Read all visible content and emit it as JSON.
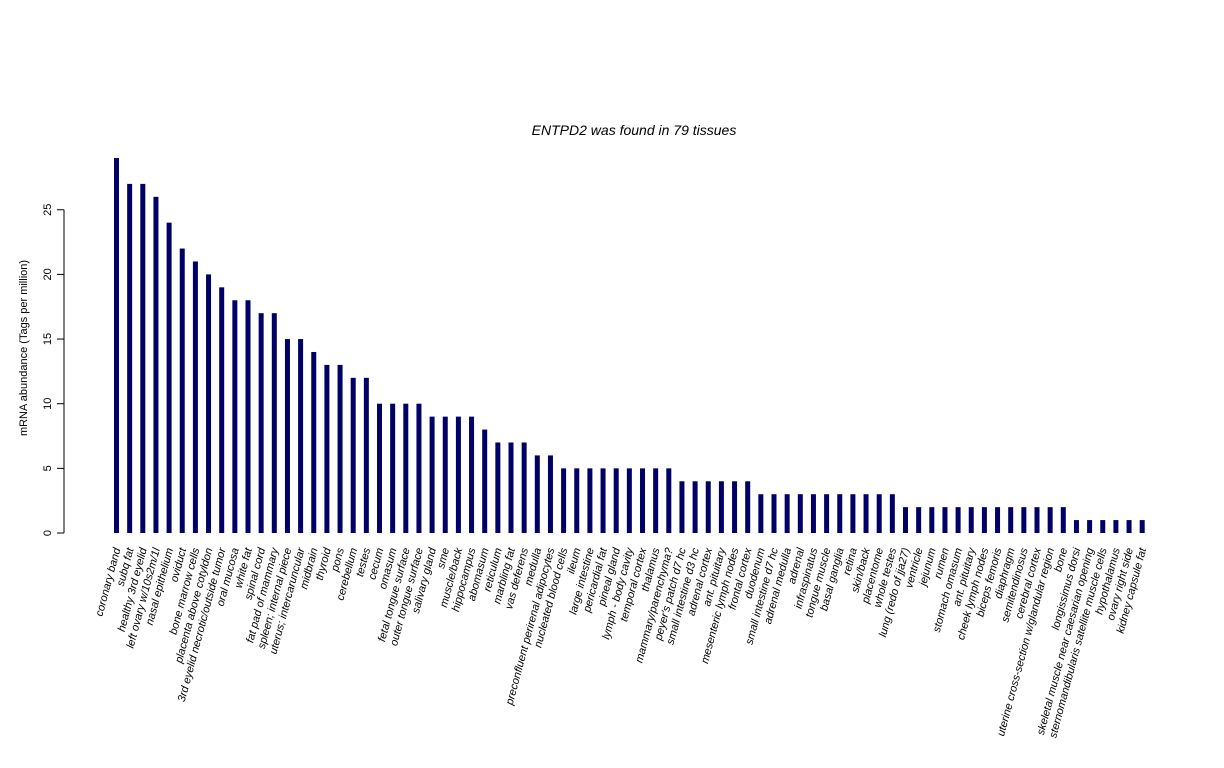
{
  "chart_data": {
    "type": "bar",
    "title": "ENTPD2  was found in  79  tissues",
    "xlabel": "",
    "ylabel": "mRNA abundance (Tags per million)",
    "ylim": [
      0,
      29
    ],
    "yticks": [
      0,
      5,
      10,
      15,
      20,
      25
    ],
    "grid": false,
    "bar_color": "#000066",
    "categories": [
      "coronary band",
      "subq fat",
      "healthy 3rd eyelid",
      "left ovary w/10s2m/1l",
      "nasal epithelium",
      "oviduct",
      "bone marrow cells",
      "placenta above cotyldon",
      "3rd eyelid necrotic/outside tumor",
      "oral mucosa",
      "white fat",
      "spinal cord",
      "fat pad of mammary",
      "spleen; internal piece",
      "uterus; intercaruncular",
      "midbrain",
      "thyroid",
      "pons",
      "cerebellum",
      "testes",
      "cecum",
      "omasum",
      "fetal tongue surface",
      "outer tongue surface",
      "salivary gland",
      "sme",
      "muscle/back",
      "hippocampus",
      "abomasum",
      "reticulum",
      "marbling fat",
      "vas deferens",
      "medulla",
      "preconfluent perirenal adipocytes",
      "nucleated blood cells",
      "ileum",
      "large intestine",
      "pericardial fat",
      "pineal gland",
      "lymph - body cavity",
      "temporal cortex",
      "thalamus",
      "mammary/parenchyma?",
      "peyer's patch d7 hc",
      "small intestine d3 hc",
      "adrenal cortex",
      "ant. pituitary",
      "mesenteric lymph nodes",
      "frontal cortex",
      "duodenum",
      "small intestine d7 hc",
      "adrenal medulla",
      "adrenal",
      "infraspinatus",
      "tongue muscle",
      "basal ganglia",
      "retina",
      "skin/back",
      "placentome",
      "whole testes",
      "lung (redo of jja27)",
      "ventricle",
      "jejunum",
      "rumen",
      "stomach omasum",
      "ant. pituitary",
      "cheek lymph nodes",
      "biceps femoris",
      "diaphragm",
      "semitendinosus",
      "cerebral cortex",
      "uterine cross-section w/glandular region",
      "bone",
      "longissimus dorsi",
      "skeletal muscle near caesarian opening",
      "sternomandibularis satellite muscle cells",
      "hypothalamus",
      "ovary right side",
      "kidney capsule fat"
    ],
    "values": [
      29,
      27,
      27,
      26,
      24,
      22,
      21,
      20,
      19,
      18,
      18,
      17,
      17,
      15,
      15,
      14,
      13,
      13,
      12,
      12,
      10,
      10,
      10,
      10,
      9,
      9,
      9,
      9,
      8,
      7,
      7,
      7,
      6,
      6,
      5,
      5,
      5,
      5,
      5,
      5,
      5,
      5,
      5,
      4,
      4,
      4,
      4,
      4,
      4,
      3,
      3,
      3,
      3,
      3,
      3,
      3,
      3,
      3,
      3,
      3,
      2,
      2,
      2,
      2,
      2,
      2,
      2,
      2,
      2,
      2,
      2,
      2,
      2,
      1,
      1,
      1,
      1,
      1,
      1
    ]
  }
}
